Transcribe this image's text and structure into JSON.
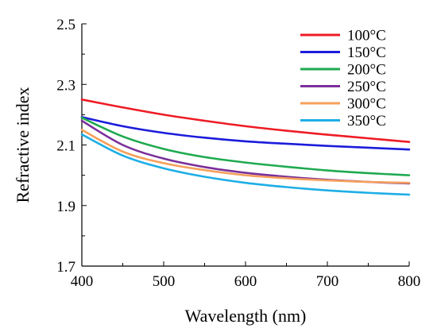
{
  "chart_data": {
    "type": "line",
    "title": "",
    "xlabel": "Wavelength (nm)",
    "ylabel": "Refractive index",
    "xlim": [
      400,
      800
    ],
    "ylim": [
      1.7,
      2.5
    ],
    "xticks": [
      400,
      500,
      600,
      700,
      800
    ],
    "xtick_labels": [
      "400",
      "500",
      "600",
      "700",
      "800"
    ],
    "yticks": [
      1.7,
      1.9,
      2.1,
      2.3,
      2.5
    ],
    "ytick_labels": [
      "1.7",
      "1.9",
      "2.1",
      "2.3",
      "2.5"
    ],
    "grid": false,
    "legend_position": "top-right",
    "x": [
      400,
      450,
      500,
      550,
      600,
      650,
      700,
      750,
      800
    ],
    "series": [
      {
        "name": "100°C",
        "color": "#ee1c25",
        "values": [
          2.25,
          2.224,
          2.2,
          2.18,
          2.162,
          2.147,
          2.134,
          2.122,
          2.11
        ]
      },
      {
        "name": "150°C",
        "color": "#1c1cdb",
        "values": [
          2.192,
          2.162,
          2.14,
          2.124,
          2.112,
          2.104,
          2.097,
          2.091,
          2.085
        ]
      },
      {
        "name": "200°C",
        "color": "#1faa50",
        "values": [
          2.19,
          2.128,
          2.087,
          2.06,
          2.042,
          2.028,
          2.016,
          2.007,
          2.0
        ]
      },
      {
        "name": "250°C",
        "color": "#7b2f9a",
        "values": [
          2.18,
          2.1,
          2.055,
          2.027,
          2.008,
          1.995,
          1.985,
          1.978,
          1.973
        ]
      },
      {
        "name": "300°C",
        "color": "#f5a05a",
        "values": [
          2.15,
          2.078,
          2.04,
          2.017,
          2.0,
          1.99,
          1.983,
          1.978,
          1.975
        ]
      },
      {
        "name": "350°C",
        "color": "#1eaee6",
        "values": [
          2.135,
          2.065,
          2.023,
          1.995,
          1.975,
          1.961,
          1.95,
          1.942,
          1.936
        ]
      }
    ]
  }
}
